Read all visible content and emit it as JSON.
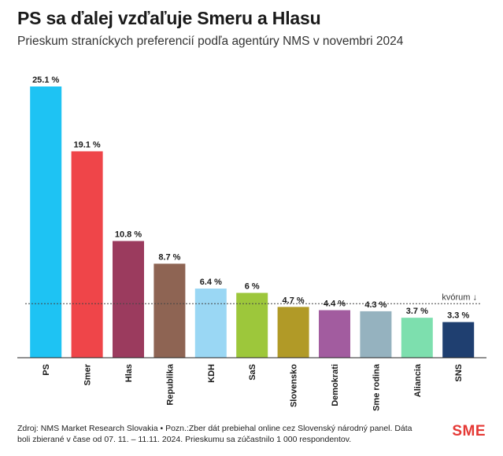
{
  "title": "PS sa ďalej vzďaľuje Smeru a Hlasu",
  "subtitle": "Prieskum straníckych preferencií podľa agentúry NMS v novembri 2024",
  "chart_data": {
    "type": "bar",
    "categories": [
      "PS",
      "Smer",
      "Hlas",
      "Republika",
      "KDH",
      "SaS",
      "Slovensko",
      "Demokrati",
      "Sme rodina",
      "Aliancia",
      "SNS"
    ],
    "values": [
      25.1,
      19.1,
      10.8,
      8.7,
      6.4,
      6,
      4.7,
      4.4,
      4.3,
      3.7,
      3.3
    ],
    "value_labels": [
      "25.1 %",
      "19.1 %",
      "10.8 %",
      "8.7 %",
      "6.4 %",
      "6 %",
      "4.7 %",
      "4.4 %",
      "4.3 %",
      "3.7 %",
      "3.3 %"
    ],
    "colors": [
      "#1ec3f3",
      "#ef4549",
      "#9b3b5e",
      "#8e6453",
      "#9ad7f4",
      "#9dc73b",
      "#b19a27",
      "#a25c9f",
      "#95b2bf",
      "#7ddfae",
      "#1f3f70"
    ],
    "ylim": [
      0,
      25.1
    ],
    "threshold": {
      "value": 5,
      "label": "kvórum ↓"
    }
  },
  "footer": {
    "source": "Zdroj: NMS Market Research Slovakia • Pozn.:Zber dát prebiehal online cez Slovenský národný panel. Dáta boli zbierané v čase od 07. 11. – 11.11. 2024. Prieskumu sa zúčastnilo 1 000 respondentov.",
    "brand": "SME"
  }
}
